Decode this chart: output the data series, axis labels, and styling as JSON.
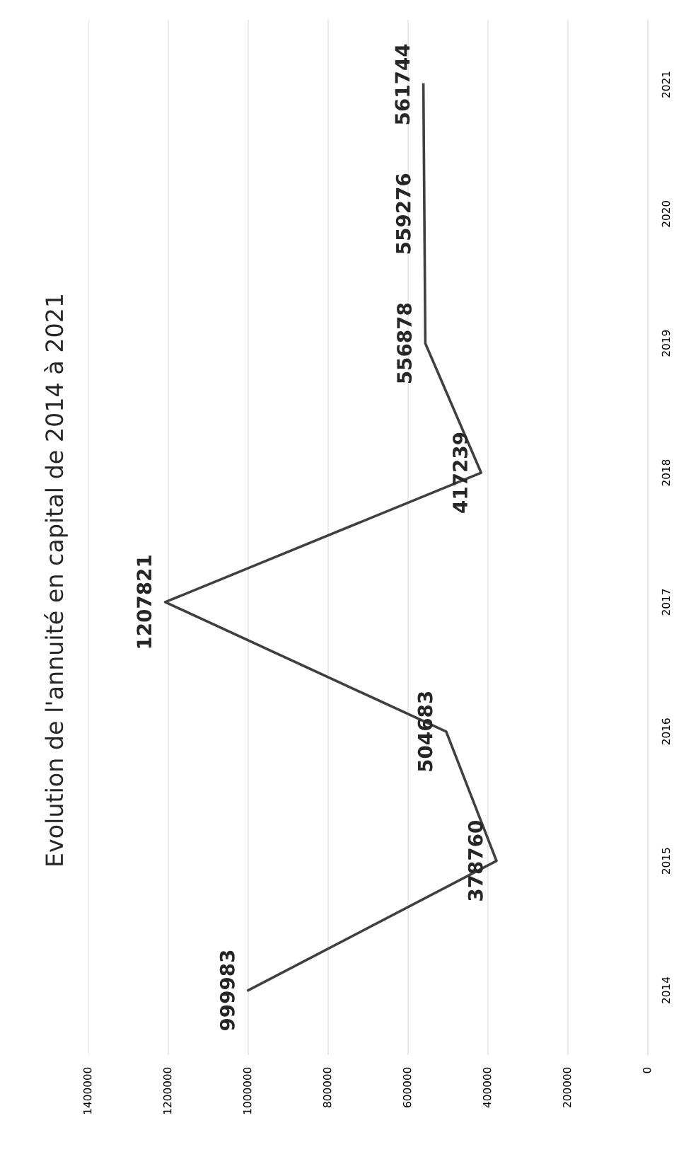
{
  "chart_data": {
    "type": "line",
    "title": "Evolution de l'annuité en capital de 2014 à 2021",
    "orientation": "horizontal",
    "categories": [
      "2021",
      "2020",
      "2019",
      "2018",
      "2017",
      "2016",
      "2015",
      "2014"
    ],
    "values": [
      561744,
      559276,
      556878,
      417239,
      1207821,
      504683,
      378760,
      999983
    ],
    "color": "#404040",
    "xlim": [
      1400000,
      0
    ],
    "xticks": [
      1400000,
      1200000,
      1000000,
      800000,
      600000,
      400000,
      200000,
      0
    ],
    "grid": "x",
    "data_labels": true,
    "marker": "none",
    "line_style": "solid"
  }
}
